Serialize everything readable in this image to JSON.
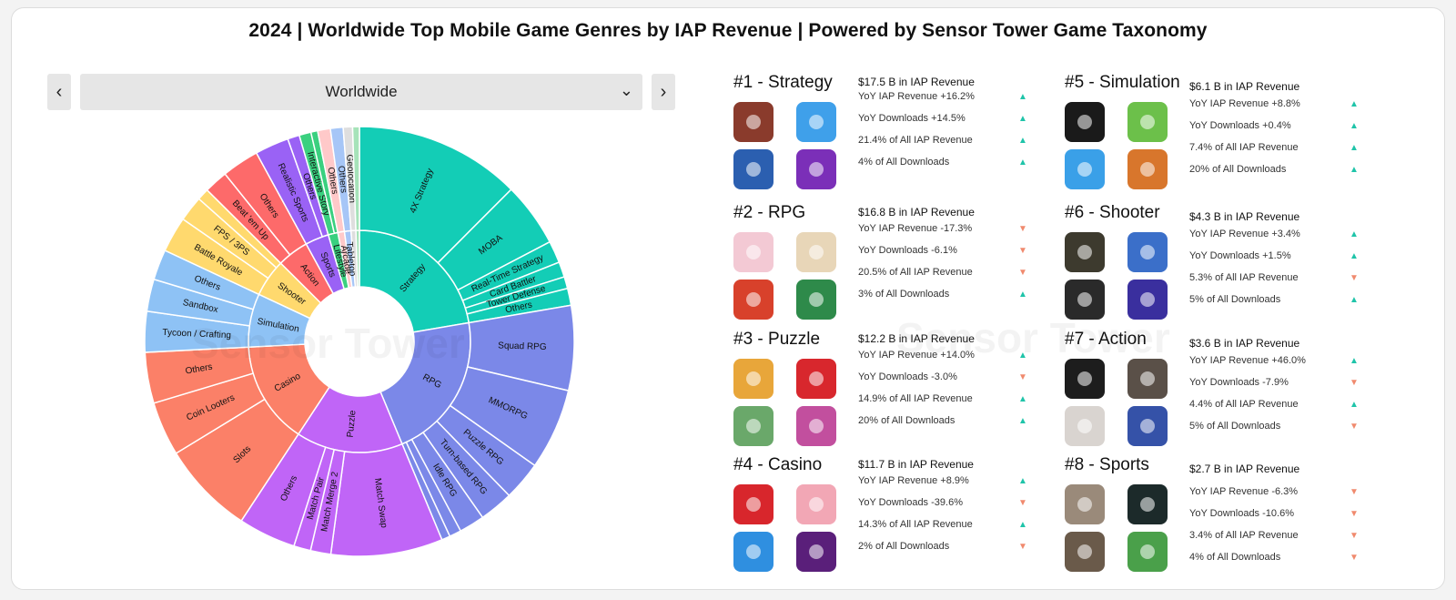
{
  "title": "2024 | Worldwide Top Mobile Game Genres by IAP Revenue | Powered by Sensor Tower Game Taxonomy",
  "selector": {
    "value": "Worldwide",
    "prev_icon": "chevron-left-icon",
    "next_icon": "chevron-right-icon",
    "dropdown_icon": "chevron-down-icon"
  },
  "watermark": "Sensor Tower",
  "chart_data": {
    "type": "sunburst",
    "inner": [
      {
        "name": "Strategy",
        "value": 17.5,
        "color": "#13cdb6"
      },
      {
        "name": "RPG",
        "value": 16.8,
        "color": "#7b88e8"
      },
      {
        "name": "Puzzle",
        "value": 12.2,
        "color": "#c065f7"
      },
      {
        "name": "Casino",
        "value": 11.7,
        "color": "#fb8068"
      },
      {
        "name": "Simulation",
        "value": 6.1,
        "color": "#8ec2f5"
      },
      {
        "name": "Shooter",
        "value": 4.3,
        "color": "#ffd96e"
      },
      {
        "name": "Action",
        "value": 3.6,
        "color": "#fd6a6a"
      },
      {
        "name": "Sports",
        "value": 2.7,
        "color": "#9a62f5"
      },
      {
        "name": "Lifestyle",
        "value": 1.1,
        "color": "#3ad07f"
      },
      {
        "name": "Arcade",
        "value": 0.75,
        "color": "#ffc9c9"
      },
      {
        "name": "Tabletop",
        "value": 0.75,
        "color": "#a6c6f7"
      },
      {
        "name": "",
        "value": 0.55,
        "color": "#dedede"
      },
      {
        "name": "",
        "value": 0.4,
        "color": "#a6e3b9"
      }
    ],
    "outer": [
      {
        "name": "4X Strategy",
        "parent": "Strategy",
        "value": 9.8
      },
      {
        "name": "MOBA",
        "parent": "Strategy",
        "value": 3.8
      },
      {
        "name": "Real-Time Strategy",
        "parent": "Strategy",
        "value": 1.3
      },
      {
        "name": "Card Battler",
        "parent": "Strategy",
        "value": 0.9
      },
      {
        "name": "Tower Defense",
        "parent": "Strategy",
        "value": 0.7
      },
      {
        "name": "Others",
        "parent": "Strategy",
        "value": 1.0
      },
      {
        "name": "Squad RPG",
        "parent": "RPG",
        "value": 5.0
      },
      {
        "name": "MMORPG",
        "parent": "RPG",
        "value": 4.8
      },
      {
        "name": "Puzzle RPG",
        "parent": "RPG",
        "value": 2.3
      },
      {
        "name": "Turn-based RPG",
        "parent": "RPG",
        "value": 2.0
      },
      {
        "name": "Idle RPG",
        "parent": "RPG",
        "value": 1.5
      },
      {
        "name": "",
        "parent": "RPG",
        "value": 0.7
      },
      {
        "name": "",
        "parent": "RPG",
        "value": 0.5
      },
      {
        "name": "Match Swap",
        "parent": "Puzzle",
        "value": 6.6
      },
      {
        "name": "Match Merge 2",
        "parent": "Puzzle",
        "value": 1.2
      },
      {
        "name": "Match Pair",
        "parent": "Puzzle",
        "value": 1.0
      },
      {
        "name": "Others",
        "parent": "Puzzle",
        "value": 3.4
      },
      {
        "name": "Slots",
        "parent": "Casino",
        "value": 5.5
      },
      {
        "name": "Coin Looters",
        "parent": "Casino",
        "value": 3.2
      },
      {
        "name": "Others",
        "parent": "Casino",
        "value": 3.0
      },
      {
        "name": "Tycoon / Crafting",
        "parent": "Simulation",
        "value": 2.4
      },
      {
        "name": "Sandbox",
        "parent": "Simulation",
        "value": 1.9
      },
      {
        "name": "Others",
        "parent": "Simulation",
        "value": 1.8
      },
      {
        "name": "Battle Royale",
        "parent": "Shooter",
        "value": 2.1
      },
      {
        "name": "FPS / 3PS",
        "parent": "Shooter",
        "value": 1.5
      },
      {
        "name": "",
        "parent": "Shooter",
        "value": 0.7
      },
      {
        "name": "Beat 'em Up",
        "parent": "Action",
        "value": 1.4
      },
      {
        "name": "Others",
        "parent": "Action",
        "value": 2.2
      },
      {
        "name": "Realistic Sports",
        "parent": "Sports",
        "value": 2.0
      },
      {
        "name": "Others",
        "parent": "Sports",
        "value": 0.7
      },
      {
        "name": "Interactive Story",
        "parent": "Lifestyle",
        "value": 0.7
      },
      {
        "name": "",
        "parent": "Lifestyle",
        "value": 0.4
      },
      {
        "name": "Others",
        "parent": "Arcade",
        "value": 0.75
      },
      {
        "name": "Others",
        "parent": "Tabletop",
        "value": 0.75
      },
      {
        "name": "Geolocation",
        "parent": "",
        "value": 0.55
      },
      {
        "name": "",
        "parent": "",
        "value": 0.4
      }
    ]
  },
  "genres": [
    {
      "rank_title": "#1 - Strategy",
      "revenue": "$17.5 B in IAP Revenue",
      "icon_colors": [
        "#8a3b2c",
        "#3fa0ea",
        "#2b5fb0",
        "#7b2fb8"
      ],
      "icon_names": [
        "game-icon-1",
        "game-icon-2",
        "game-icon-3",
        "game-icon-4"
      ],
      "stats": [
        {
          "text": "YoY IAP Revenue +16.2%",
          "dir": "up"
        },
        {
          "text": "YoY Downloads +14.5%",
          "dir": "up"
        },
        {
          "text": "21.4% of All IAP Revenue",
          "dir": "up"
        },
        {
          "text": "4% of All Downloads",
          "dir": "up"
        }
      ]
    },
    {
      "rank_title": "#2 - RPG",
      "revenue": "$16.8 B in IAP Revenue",
      "icon_colors": [
        "#f3c9d4",
        "#e8d6b8",
        "#d8412b",
        "#2e8a4a"
      ],
      "icon_names": [
        "game-icon-1",
        "game-icon-2",
        "game-icon-3",
        "game-icon-4"
      ],
      "stats": [
        {
          "text": "YoY IAP Revenue -17.3%",
          "dir": "down"
        },
        {
          "text": "YoY Downloads -6.1%",
          "dir": "down"
        },
        {
          "text": "20.5% of All IAP Revenue",
          "dir": "down"
        },
        {
          "text": "3% of All Downloads",
          "dir": "up"
        }
      ]
    },
    {
      "rank_title": "#3 - Puzzle",
      "revenue": "$12.2 B in IAP Revenue",
      "icon_colors": [
        "#e8a63a",
        "#d8272d",
        "#6aa86a",
        "#c24f9e"
      ],
      "icon_names": [
        "game-icon-1",
        "game-icon-2",
        "game-icon-3",
        "game-icon-4"
      ],
      "stats": [
        {
          "text": "YoY IAP Revenue +14.0%",
          "dir": "up"
        },
        {
          "text": "YoY Downloads -3.0%",
          "dir": "down"
        },
        {
          "text": "14.9% of All IAP Revenue",
          "dir": "up"
        },
        {
          "text": "20% of All Downloads",
          "dir": "up"
        }
      ]
    },
    {
      "rank_title": "#4 - Casino",
      "revenue": "$11.7 B in IAP Revenue",
      "icon_colors": [
        "#d8262c",
        "#f2a7b5",
        "#2f8fe0",
        "#5a1f7a"
      ],
      "icon_names": [
        "game-icon-1",
        "game-icon-2",
        "game-icon-3",
        "game-icon-4"
      ],
      "stats": [
        {
          "text": "YoY IAP Revenue +8.9%",
          "dir": "up"
        },
        {
          "text": "YoY Downloads -39.6%",
          "dir": "down"
        },
        {
          "text": "14.3% of All IAP Revenue",
          "dir": "up"
        },
        {
          "text": "2% of All Downloads",
          "dir": "down"
        }
      ]
    },
    {
      "rank_title": "#5 - Simulation",
      "revenue": "$6.1 B in IAP Revenue",
      "icon_colors": [
        "#1a1a1a",
        "#6cc04a",
        "#3aa0e8",
        "#d8762c"
      ],
      "icon_names": [
        "game-icon-1",
        "game-icon-2",
        "game-icon-3",
        "game-icon-4"
      ],
      "stats": [
        {
          "text": "YoY IAP Revenue +8.8%",
          "dir": "up"
        },
        {
          "text": "YoY Downloads +0.4%",
          "dir": "up"
        },
        {
          "text": "7.4% of All IAP Revenue",
          "dir": "up"
        },
        {
          "text": "20% of All Downloads",
          "dir": "up"
        }
      ]
    },
    {
      "rank_title": "#6 - Shooter",
      "revenue": "$4.3 B in IAP Revenue",
      "icon_colors": [
        "#3d3a2e",
        "#3b6fc9",
        "#2a2a2a",
        "#3a2f9e"
      ],
      "icon_names": [
        "game-icon-1",
        "game-icon-2",
        "game-icon-3",
        "game-icon-4"
      ],
      "stats": [
        {
          "text": "YoY IAP Revenue +3.4%",
          "dir": "up"
        },
        {
          "text": "YoY Downloads +1.5%",
          "dir": "up"
        },
        {
          "text": "5.3% of All IAP Revenue",
          "dir": "down"
        },
        {
          "text": "5% of All Downloads",
          "dir": "up"
        }
      ]
    },
    {
      "rank_title": "#7 - Action",
      "revenue": "$3.6 B in IAP Revenue",
      "icon_colors": [
        "#1d1d1d",
        "#5a5048",
        "#d9d4d0",
        "#3552a8"
      ],
      "icon_names": [
        "game-icon-1",
        "game-icon-2",
        "game-icon-3",
        "game-icon-4"
      ],
      "stats": [
        {
          "text": "YoY IAP Revenue +46.0%",
          "dir": "up"
        },
        {
          "text": "YoY Downloads -7.9%",
          "dir": "down"
        },
        {
          "text": "4.4% of All IAP Revenue",
          "dir": "up"
        },
        {
          "text": "5% of All Downloads",
          "dir": "down"
        }
      ]
    },
    {
      "rank_title": "#8 - Sports",
      "revenue": "$2.7 B in IAP Revenue",
      "icon_colors": [
        "#9a8a7a",
        "#1c2a2a",
        "#6a5a4a",
        "#4aa04a"
      ],
      "icon_names": [
        "game-icon-1",
        "game-icon-2",
        "game-icon-3",
        "game-icon-4"
      ],
      "stats": [
        {
          "text": "YoY IAP Revenue -6.3%",
          "dir": "down"
        },
        {
          "text": "YoY Downloads -10.6%",
          "dir": "down"
        },
        {
          "text": "3.4% of All IAP Revenue",
          "dir": "down"
        },
        {
          "text": "4% of All Downloads",
          "dir": "down"
        }
      ]
    }
  ]
}
